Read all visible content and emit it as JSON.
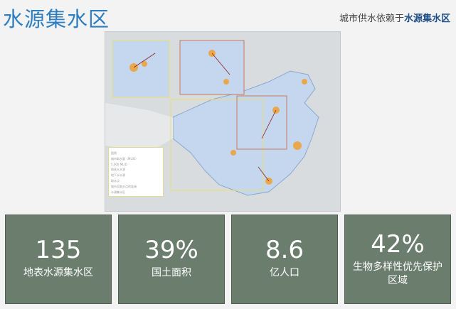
{
  "header": {
    "title": "水源集水区",
    "subtitle_prefix": "城市供水依赖于",
    "subtitle_highlight": "水源集水区"
  },
  "map": {
    "legend": {
      "title": "图例",
      "items": [
        "城市取水量（ML/D）",
        "5,000 ML/D",
        "地表水水源",
        "地下水水源",
        "取水点",
        "城市至取水点的连接",
        "水源集水区"
      ]
    },
    "colors": {
      "land": "#d9dcdf",
      "catchment": "#c5d7ee",
      "city": "#f0a030",
      "inset_border": "#c87a5a",
      "region_border": "#e8e070"
    }
  },
  "stats": [
    {
      "value": "135",
      "label": "地表水源集水区"
    },
    {
      "value": "39%",
      "label": "国土面积"
    },
    {
      "value": "8.6",
      "label": "亿人口"
    },
    {
      "value": "42%",
      "label": "生物多样性优先保护区域"
    }
  ]
}
